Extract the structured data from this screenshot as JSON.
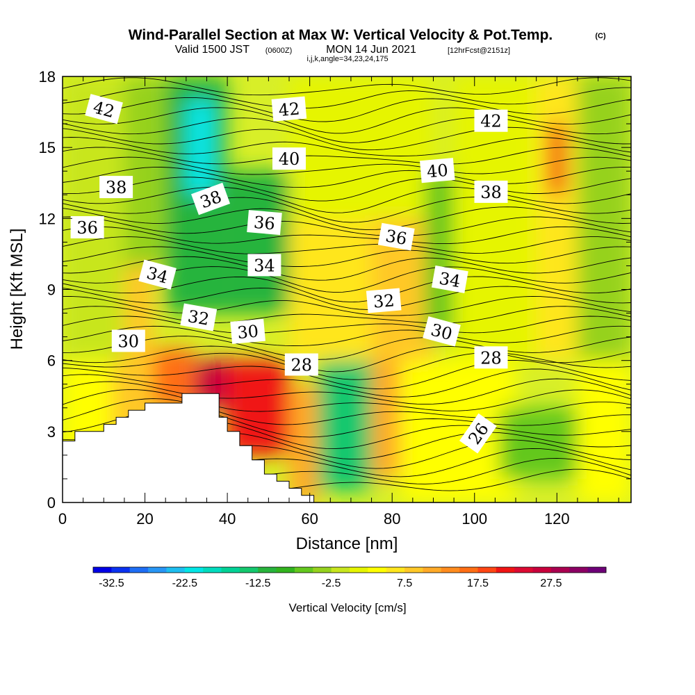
{
  "title": {
    "main": "Wind-Parallel Section at Max W: Vertical Velocity & Pot.Temp.",
    "copyright": "(C)",
    "valid_prefix": "Valid 1500 JST",
    "valid_utc": "(0600Z)",
    "valid_date": "MON 14 Jun 2021",
    "forecast": "[12hrFcst@2151z]",
    "section_info": "i,j,k,angle=34,23,24,175"
  },
  "colorbar": {
    "label": "Vertical Velocity [cm/s]",
    "tick_labels": [
      "-32.5",
      "-22.5",
      "-12.5",
      "-2.5",
      "7.5",
      "17.5",
      "27.5"
    ],
    "colors": [
      "#0000e6",
      "#0a32f0",
      "#1e6ef5",
      "#2896f5",
      "#1ebef0",
      "#00e6e6",
      "#00dcbe",
      "#00d296",
      "#14c86e",
      "#28b43c",
      "#32b41e",
      "#64c81e",
      "#96d21e",
      "#c8e61e",
      "#e6f500",
      "#ffff00",
      "#ffe61e",
      "#ffc828",
      "#ffaa28",
      "#ff8c1e",
      "#ff6e14",
      "#ff4614",
      "#f01414",
      "#dc0a32",
      "#c8003c",
      "#aa0050",
      "#8c0064",
      "#6e0078"
    ],
    "min": -35,
    "max": 35,
    "step": 2.5
  },
  "chart_data": {
    "type": "heatmap",
    "xlabel": "Distance [nm]",
    "ylabel": "Height [Kft MSL]",
    "xlim": [
      0,
      138
    ],
    "ylim": [
      0,
      18
    ],
    "x_ticks": [
      0,
      20,
      40,
      60,
      80,
      100,
      120
    ],
    "y_ticks": [
      0,
      3,
      6,
      9,
      12,
      15,
      18
    ],
    "field": "Vertical Velocity [cm/s]",
    "velocity_cells": [
      {
        "x0": 0,
        "x1": 12,
        "y0": 0,
        "y1": 6,
        "value": 2.5
      },
      {
        "x0": 12,
        "x1": 22,
        "y0": 0,
        "y1": 6,
        "value": 7.5
      },
      {
        "x0": 22,
        "x1": 32,
        "y0": 4,
        "y1": 6.5,
        "value": 15
      },
      {
        "x0": 32,
        "x1": 40,
        "y0": 4,
        "y1": 6,
        "value": 25
      },
      {
        "x0": 40,
        "x1": 55,
        "y0": 2,
        "y1": 6,
        "value": 20
      },
      {
        "x0": 55,
        "x1": 62,
        "y0": 0,
        "y1": 5,
        "value": 10
      },
      {
        "x0": 62,
        "x1": 75,
        "y0": 0.5,
        "y1": 8,
        "value": -15
      },
      {
        "x0": 75,
        "x1": 82,
        "y0": 1,
        "y1": 6,
        "value": 10
      },
      {
        "x0": 82,
        "x1": 110,
        "y0": 0,
        "y1": 6,
        "value": 2.5
      },
      {
        "x0": 106,
        "x1": 125,
        "y0": 1,
        "y1": 4,
        "value": -7.5
      },
      {
        "x0": 125,
        "x1": 138,
        "y0": 0,
        "y1": 6,
        "value": 2.5
      },
      {
        "x0": 0,
        "x1": 15,
        "y0": 6,
        "y1": 18,
        "value": -2.5
      },
      {
        "x0": 15,
        "x1": 22,
        "y0": 6,
        "y1": 10,
        "value": 7.5
      },
      {
        "x0": 15,
        "x1": 25,
        "y0": 10,
        "y1": 18,
        "value": -5
      },
      {
        "x0": 25,
        "x1": 40,
        "y0": 8,
        "y1": 18,
        "value": -12.5
      },
      {
        "x0": 30,
        "x1": 37,
        "y0": 13,
        "y1": 17,
        "value": -22.5
      },
      {
        "x0": 40,
        "x1": 55,
        "y0": 8,
        "y1": 14,
        "value": -12.5
      },
      {
        "x0": 55,
        "x1": 75,
        "y0": 6,
        "y1": 12,
        "value": 5
      },
      {
        "x0": 75,
        "x1": 90,
        "y0": 6,
        "y1": 12,
        "value": 7.5
      },
      {
        "x0": 55,
        "x1": 90,
        "y0": 12,
        "y1": 18,
        "value": 0
      },
      {
        "x0": 88,
        "x1": 95,
        "y0": 7,
        "y1": 14,
        "value": -7.5
      },
      {
        "x0": 95,
        "x1": 115,
        "y0": 6,
        "y1": 18,
        "value": 0
      },
      {
        "x0": 115,
        "x1": 125,
        "y0": 6,
        "y1": 18,
        "value": 5
      },
      {
        "x0": 118,
        "x1": 122,
        "y0": 13,
        "y1": 16,
        "value": 20
      },
      {
        "x0": 125,
        "x1": 138,
        "y0": 6,
        "y1": 18,
        "value": -5
      }
    ],
    "terrain_profile": [
      [
        0,
        2.6
      ],
      [
        3,
        2.6
      ],
      [
        3,
        3
      ],
      [
        10,
        3
      ],
      [
        10,
        3.3
      ],
      [
        13,
        3.3
      ],
      [
        13,
        3.6
      ],
      [
        16,
        3.6
      ],
      [
        16,
        3.9
      ],
      [
        20,
        3.9
      ],
      [
        20,
        4.2
      ],
      [
        29,
        4.2
      ],
      [
        29,
        4.6
      ],
      [
        38,
        4.6
      ],
      [
        38,
        3.6
      ],
      [
        40,
        3.6
      ],
      [
        40,
        3.0
      ],
      [
        43,
        3.0
      ],
      [
        43,
        2.4
      ],
      [
        46,
        2.4
      ],
      [
        46,
        1.8
      ],
      [
        49,
        1.8
      ],
      [
        49,
        1.2
      ],
      [
        52,
        1.2
      ],
      [
        52,
        0.9
      ],
      [
        55,
        0.9
      ],
      [
        55,
        0.6
      ],
      [
        58,
        0.6
      ],
      [
        58,
        0.3
      ],
      [
        61,
        0.3
      ],
      [
        61,
        0
      ]
    ],
    "contour_labels": [
      {
        "text": "42",
        "x": 10,
        "y": 16.6,
        "angle": 15
      },
      {
        "text": "42",
        "x": 55,
        "y": 16.6,
        "angle": -5
      },
      {
        "text": "42",
        "x": 104,
        "y": 16.1,
        "angle": 0
      },
      {
        "text": "40",
        "x": 55,
        "y": 14.5,
        "angle": 0
      },
      {
        "text": "40",
        "x": 91,
        "y": 14.0,
        "angle": -5
      },
      {
        "text": "38",
        "x": 13,
        "y": 13.3,
        "angle": 0
      },
      {
        "text": "38",
        "x": 36,
        "y": 12.8,
        "angle": -20
      },
      {
        "text": "38",
        "x": 104,
        "y": 13.1,
        "angle": 0
      },
      {
        "text": "36",
        "x": 6,
        "y": 11.6,
        "angle": 0
      },
      {
        "text": "36",
        "x": 49,
        "y": 11.8,
        "angle": 5
      },
      {
        "text": "36",
        "x": 81,
        "y": 11.2,
        "angle": 10
      },
      {
        "text": "34",
        "x": 23,
        "y": 9.6,
        "angle": 15
      },
      {
        "text": "34",
        "x": 49,
        "y": 10.0,
        "angle": 0
      },
      {
        "text": "34",
        "x": 94,
        "y": 9.4,
        "angle": 10
      },
      {
        "text": "32",
        "x": 33,
        "y": 7.8,
        "angle": 10
      },
      {
        "text": "32",
        "x": 78,
        "y": 8.5,
        "angle": -5
      },
      {
        "text": "30",
        "x": 16,
        "y": 6.8,
        "angle": 0
      },
      {
        "text": "30",
        "x": 45,
        "y": 7.2,
        "angle": -5
      },
      {
        "text": "30",
        "x": 92,
        "y": 7.2,
        "angle": 15
      },
      {
        "text": "28",
        "x": 58,
        "y": 5.8,
        "angle": 0
      },
      {
        "text": "28",
        "x": 104,
        "y": 6.1,
        "angle": 0
      },
      {
        "text": "26",
        "x": 101,
        "y": 2.9,
        "angle": -55
      }
    ]
  }
}
